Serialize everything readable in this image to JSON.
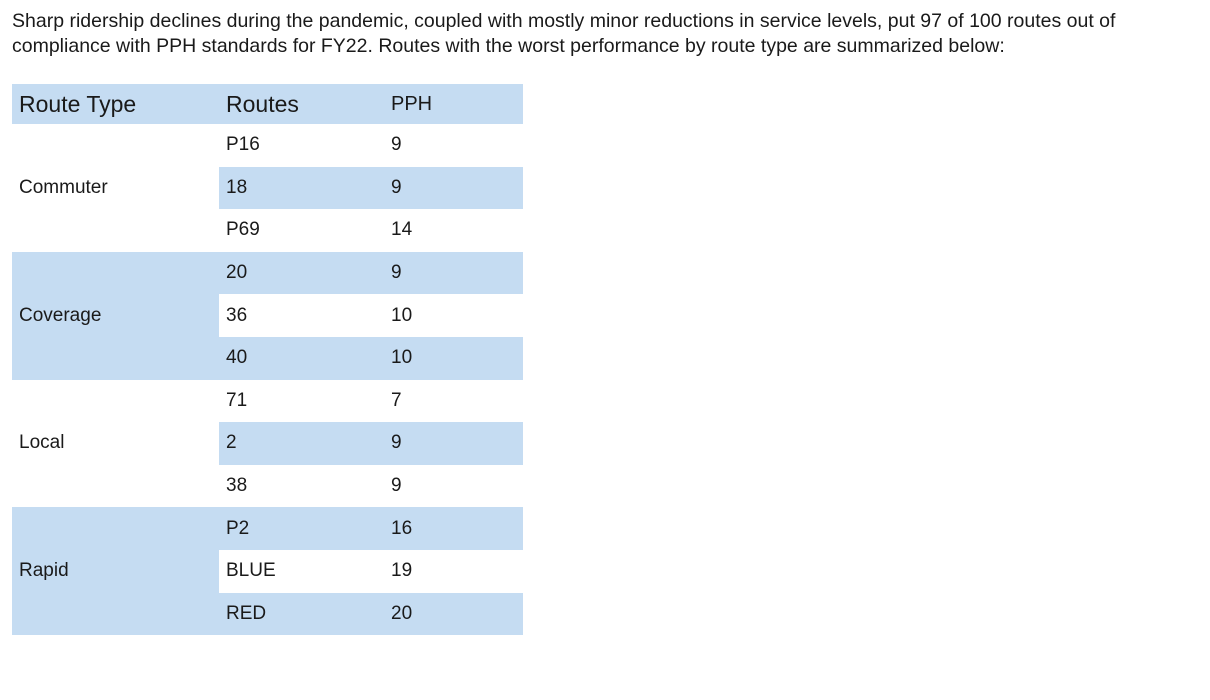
{
  "intro": "Sharp ridership declines during the pandemic, coupled with mostly minor reductions in service levels, put 97 of 100 routes out of compliance with PPH standards for FY22. Routes with the worst performance by route type are summarized below:",
  "table": {
    "headers": [
      "Route Type",
      "Routes",
      "PPH"
    ],
    "groups": [
      {
        "type": "Commuter",
        "rows": [
          {
            "route": "P16",
            "pph": "9"
          },
          {
            "route": "18",
            "pph": "9"
          },
          {
            "route": "P69",
            "pph": "14"
          }
        ]
      },
      {
        "type": "Coverage",
        "rows": [
          {
            "route": "20",
            "pph": "9"
          },
          {
            "route": "36",
            "pph": "10"
          },
          {
            "route": "40",
            "pph": "10"
          }
        ]
      },
      {
        "type": "Local",
        "rows": [
          {
            "route": "71",
            "pph": "7"
          },
          {
            "route": "2",
            "pph": "9"
          },
          {
            "route": "38",
            "pph": "9"
          }
        ]
      },
      {
        "type": "Rapid",
        "rows": [
          {
            "route": "P2",
            "pph": "16"
          },
          {
            "route": "BLUE",
            "pph": "19"
          },
          {
            "route": "RED",
            "pph": "20"
          }
        ]
      }
    ]
  },
  "colors": {
    "band": "#c5dcf2",
    "background": "#ffffff",
    "text": "#1a1a1a"
  }
}
